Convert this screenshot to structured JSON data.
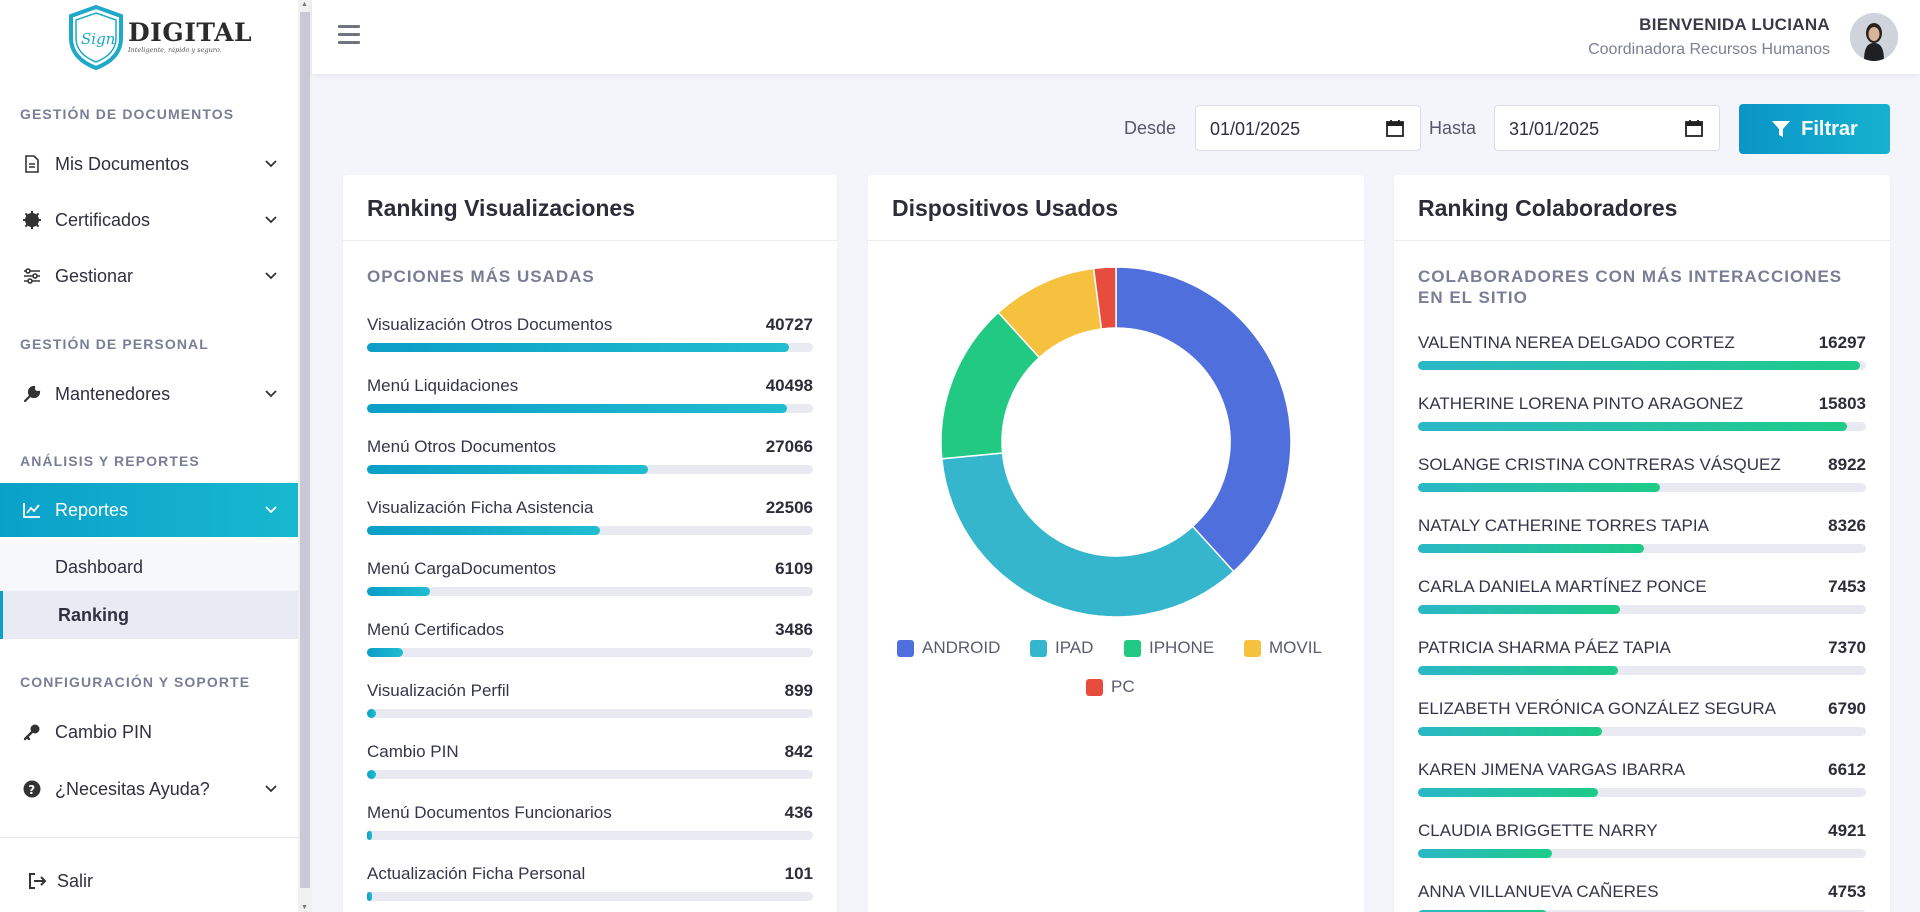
{
  "brand": {
    "name": "DIGITAL",
    "script": "Sign",
    "tagline": "Inteligente, rápido y seguro."
  },
  "sidebar": {
    "sections": [
      "GESTIÓN DE DOCUMENTOS",
      "GESTIÓN DE PERSONAL",
      "ANÁLISIS Y REPORTES",
      "CONFIGURACIÓN Y SOPORTE"
    ],
    "items": {
      "mis_documentos": "Mis Documentos",
      "certificados": "Certificados",
      "gestionar": "Gestionar",
      "mantenedores": "Mantenedores",
      "reportes": "Reportes",
      "dashboard": "Dashboard",
      "ranking": "Ranking",
      "cambio_pin": "Cambio PIN",
      "ayuda": "¿Necesitas Ayuda?",
      "salir": "Salir"
    }
  },
  "header": {
    "welcome": "BIENVENIDA LUCIANA",
    "role": "Coordinadora Recursos Humanos"
  },
  "filter": {
    "from_label": "Desde",
    "from_value": "01/01/2025",
    "to_label": "Hasta",
    "to_value": "31/01/2025",
    "button": "Filtrar"
  },
  "colors": {
    "accent": "#0aa1c9",
    "android": "#4f6fdd",
    "ipad": "#36b6cc",
    "iphone": "#21c983",
    "movil": "#f6c13f",
    "pc": "#e84c3d"
  },
  "ranking_views": {
    "title": "Ranking Visualizaciones",
    "subtitle": "OPCIONES MÁS USADAS",
    "max": 43000,
    "rows": [
      {
        "label": "Visualización Otros Documentos",
        "value": 40727
      },
      {
        "label": "Menú Liquidaciones",
        "value": 40498
      },
      {
        "label": "Menú Otros Documentos",
        "value": 27066
      },
      {
        "label": "Visualización Ficha Asistencia",
        "value": 22506
      },
      {
        "label": "Menú CargaDocumentos",
        "value": 6109
      },
      {
        "label": "Menú Certificados",
        "value": 3486
      },
      {
        "label": "Visualización Perfil",
        "value": 899
      },
      {
        "label": "Cambio PIN",
        "value": 842
      },
      {
        "label": "Menú Documentos Funcionarios",
        "value": 436
      },
      {
        "label": "Actualización Ficha Personal",
        "value": 101
      }
    ]
  },
  "devices": {
    "title": "Dispositivos Usados",
    "legend": [
      "ANDROID",
      "IPAD",
      "IPHONE",
      "MOVIL",
      "PC"
    ]
  },
  "chart_data": {
    "type": "pie",
    "title": "Dispositivos Usados",
    "categories": [
      "ANDROID",
      "IPAD",
      "IPHONE",
      "MOVIL",
      "PC"
    ],
    "values": [
      37.5,
      34.5,
      14.5,
      9.5,
      2.0
    ],
    "legend_position": "bottom"
  },
  "ranking_collab": {
    "title": "Ranking Colaboradores",
    "subtitle_1": "COLABORADORES CON MÁS INTERACCIONES",
    "subtitle_2": "EN EL SITIO",
    "max": 16500,
    "rows": [
      {
        "label": "VALENTINA NEREA DELGADO CORTEZ",
        "value": 16297
      },
      {
        "label": "KATHERINE LORENA PINTO ARAGONEZ",
        "value": 15803
      },
      {
        "label": "SOLANGE CRISTINA CONTRERAS VÁSQUEZ",
        "value": 8922
      },
      {
        "label": "NATALY CATHERINE TORRES TAPIA",
        "value": 8326
      },
      {
        "label": "CARLA DANIELA MARTÍNEZ PONCE",
        "value": 7453
      },
      {
        "label": "PATRICIA SHARMA PÁEZ TAPIA",
        "value": 7370
      },
      {
        "label": "ELIZABETH VERÓNICA GONZÁLEZ SEGURA",
        "value": 6790
      },
      {
        "label": "KAREN JIMENA VARGAS IBARRA",
        "value": 6612
      },
      {
        "label": "CLAUDIA BRIGGETTE NARRY",
        "value": 4921
      },
      {
        "label": "ANNA VILLANUEVA CAÑERES",
        "value": 4753
      }
    ]
  }
}
